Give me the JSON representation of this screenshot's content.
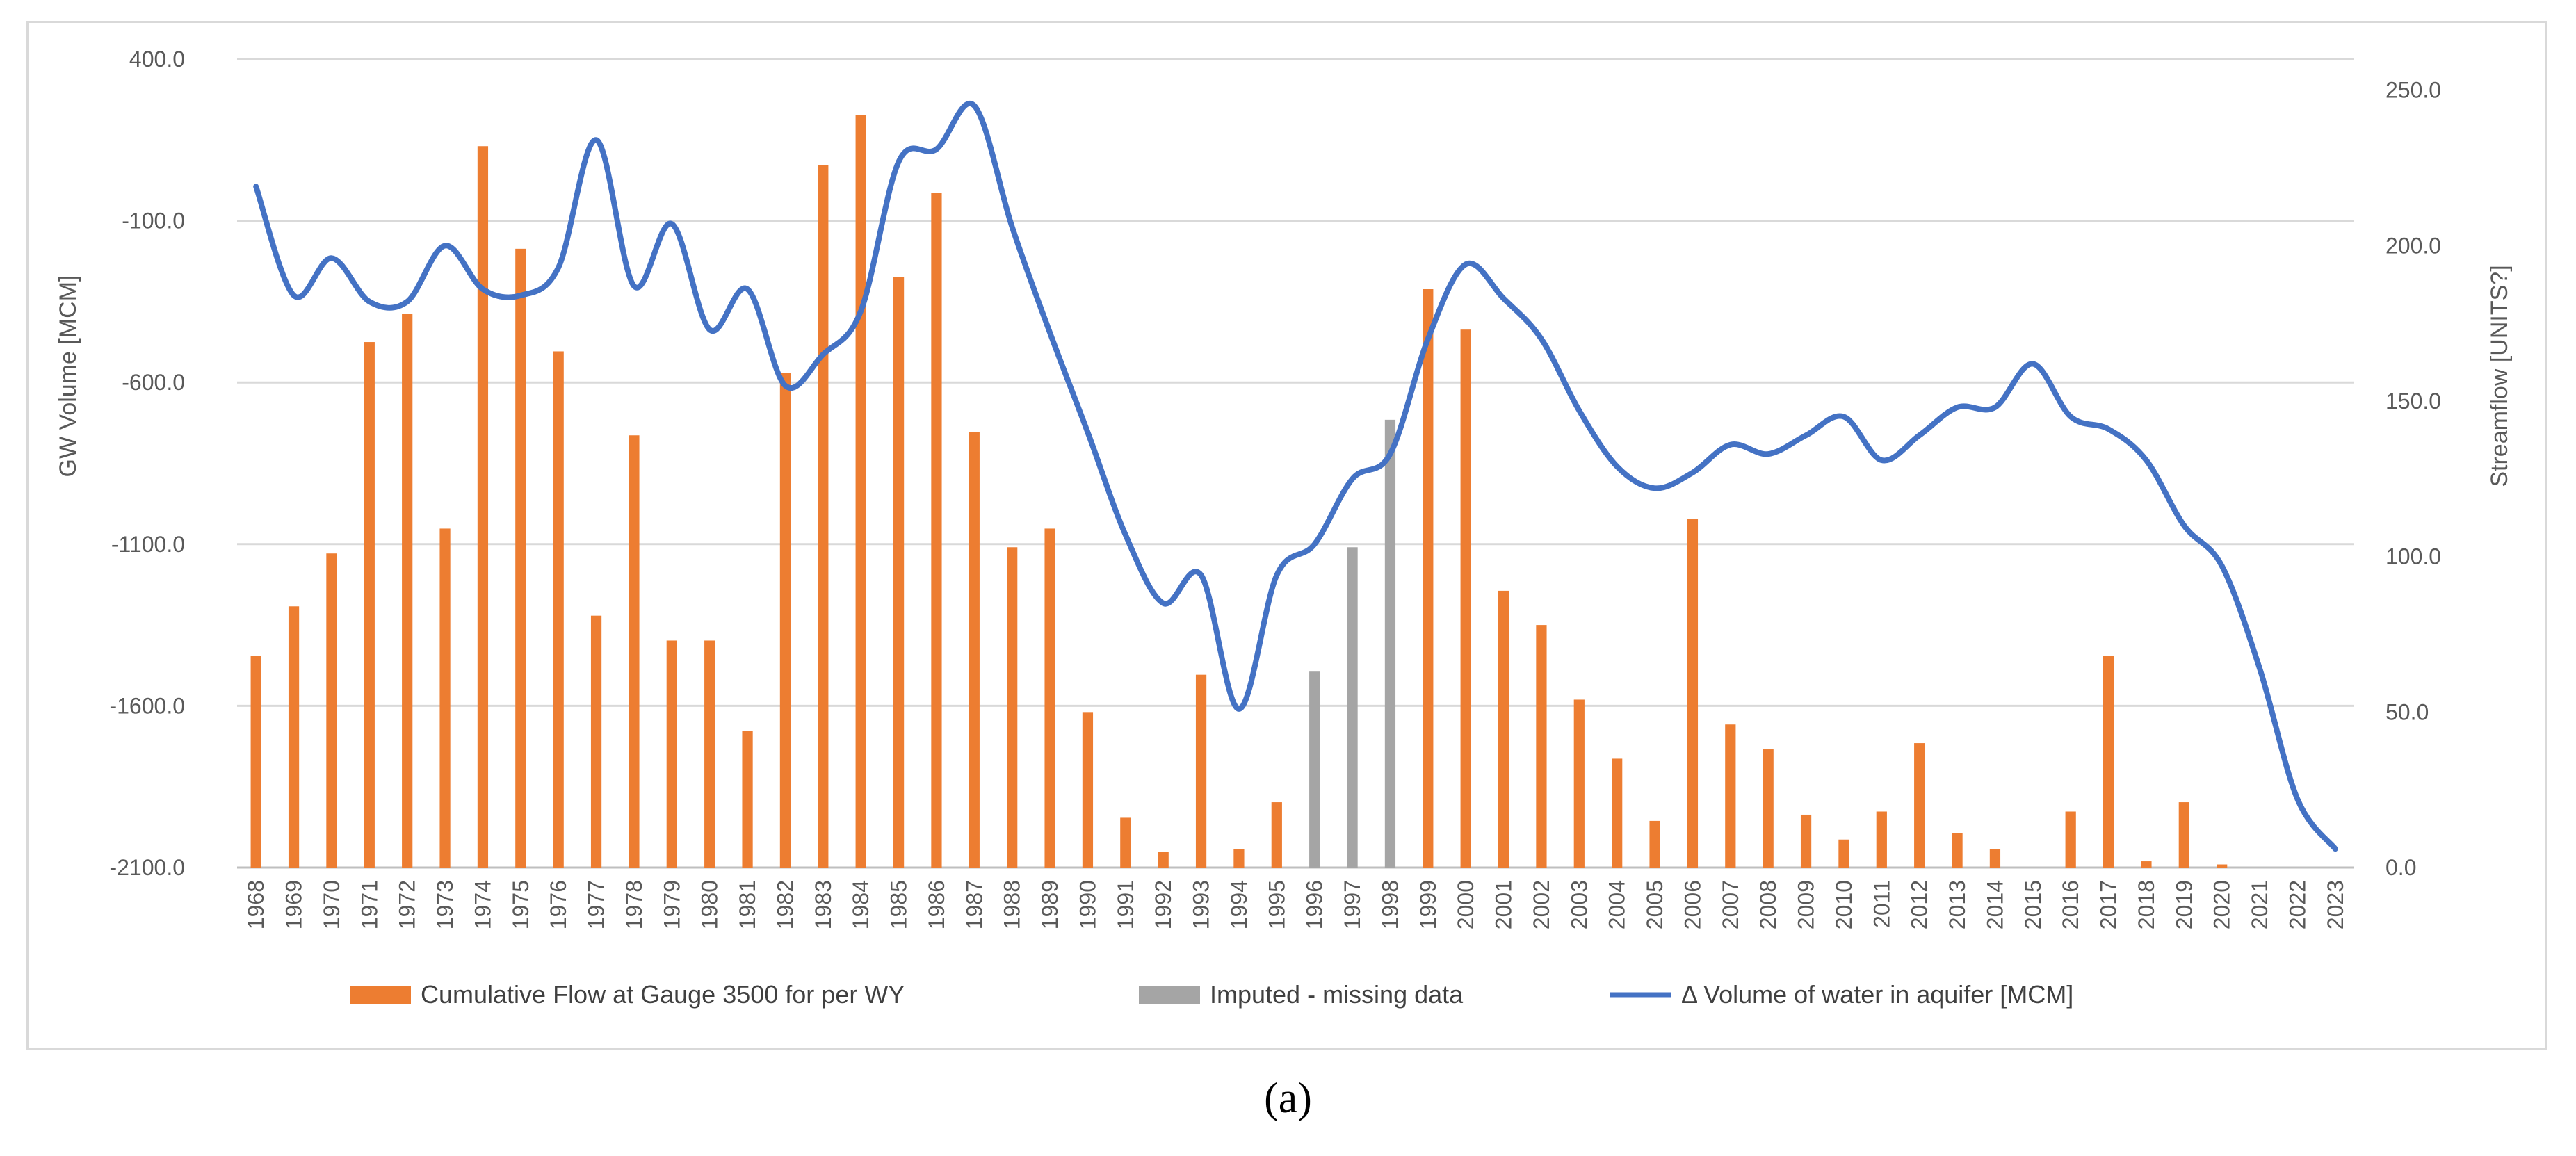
{
  "caption": "(a)",
  "chart_data": {
    "type": "bar+line",
    "categories": [
      "1968",
      "1969",
      "1970",
      "1971",
      "1972",
      "1973",
      "1974",
      "1975",
      "1976",
      "1977",
      "1978",
      "1979",
      "1980",
      "1981",
      "1982",
      "1983",
      "1984",
      "1985",
      "1986",
      "1987",
      "1988",
      "1989",
      "1990",
      "1991",
      "1992",
      "1993",
      "1994",
      "1995",
      "1996",
      "1997",
      "1998",
      "1999",
      "2000",
      "2001",
      "2002",
      "2003",
      "2004",
      "2005",
      "2006",
      "2007",
      "2008",
      "2009",
      "2010",
      "2011",
      "2012",
      "2013",
      "2014",
      "2015",
      "2016",
      "2017",
      "2018",
      "2019",
      "2020",
      "2021",
      "2022",
      "2023"
    ],
    "left_axis": {
      "label": "GW Volume [MCM]",
      "min": -2100,
      "max": 400,
      "ticks": [
        "400.0",
        "-100.0",
        "-600.0",
        "-1100.0",
        "-1600.0",
        "-2100.0"
      ]
    },
    "right_axis": {
      "label": "Streamflow [UNITS?]",
      "min": 0,
      "max": 260,
      "ticks": [
        "250.0",
        "200.0",
        "150.0",
        "100.0",
        "50.0",
        "0.0"
      ]
    },
    "series": [
      {
        "name": "Cumulative Flow at Gauge 3500 for per WY",
        "kind": "bar",
        "axis": "right",
        "color": "#ED7D31",
        "values": [
          68,
          84,
          101,
          169,
          178,
          109,
          232,
          199,
          166,
          81,
          139,
          73,
          73,
          44,
          159,
          226,
          242,
          190,
          217,
          140,
          103,
          109,
          50,
          16,
          5,
          62,
          6,
          21,
          null,
          null,
          null,
          186,
          173,
          89,
          78,
          54,
          35,
          15,
          112,
          46,
          38,
          17,
          9,
          18,
          40,
          11,
          6,
          null,
          18,
          68,
          2,
          21,
          1,
          null,
          null,
          null
        ]
      },
      {
        "name": "Imputed - missing data",
        "kind": "bar",
        "axis": "right",
        "color": "#A5A5A5",
        "values": [
          null,
          null,
          null,
          null,
          null,
          null,
          null,
          null,
          null,
          null,
          null,
          null,
          null,
          null,
          null,
          null,
          null,
          null,
          null,
          null,
          null,
          null,
          null,
          null,
          null,
          null,
          null,
          null,
          63,
          103,
          144,
          null,
          null,
          null,
          null,
          null,
          null,
          null,
          null,
          null,
          null,
          null,
          null,
          null,
          null,
          null,
          null,
          null,
          null,
          null,
          null,
          null,
          null,
          null,
          null,
          null
        ]
      },
      {
        "name": "Δ  Volume of water in aquifer [MCM]",
        "kind": "line",
        "axis": "right",
        "color": "#4472C4",
        "values": [
          219,
          184,
          196,
          182,
          182,
          200,
          186,
          184,
          193,
          234,
          187,
          207,
          173,
          186,
          155,
          165,
          179,
          227,
          231,
          245,
          206,
          172,
          140,
          107,
          85,
          94,
          51,
          94,
          104,
          125,
          133,
          170,
          194,
          183,
          170,
          147,
          129,
          122,
          127,
          136,
          133,
          139,
          145,
          131,
          139,
          148,
          148,
          162,
          145,
          141,
          131,
          110,
          97,
          64,
          22,
          6
        ]
      }
    ],
    "legend_position": "bottom"
  }
}
